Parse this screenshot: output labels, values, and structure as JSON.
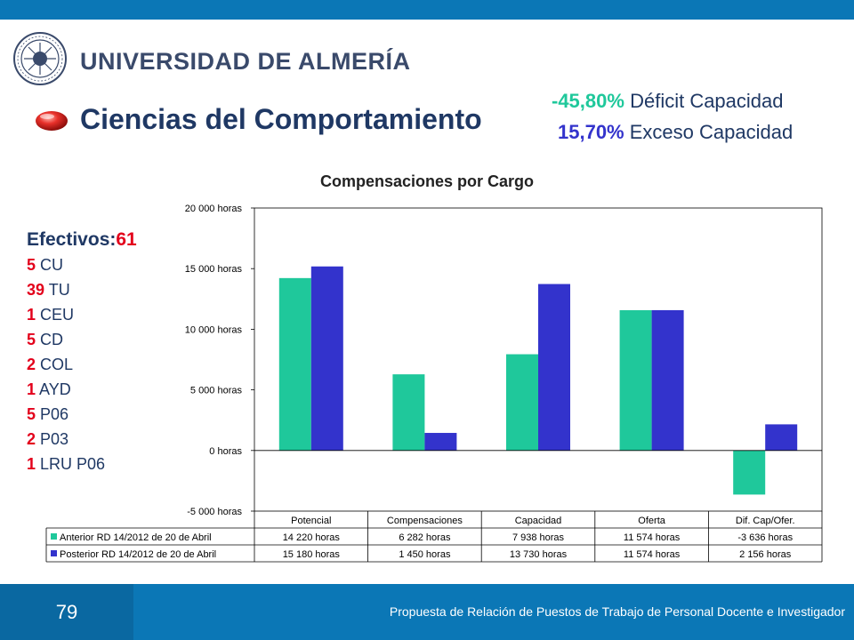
{
  "header": {
    "university": "UNIVERSIDAD DE ALMERÍA",
    "title": "Ciencias del Comportamiento",
    "stat_deficit_value": "-45,80%",
    "stat_deficit_label": "Déficit Capacidad",
    "stat_excess_value": "15,70%",
    "stat_excess_label": "Exceso Capacidad"
  },
  "efectivos": {
    "label": "Efectivos:",
    "total": "61",
    "items": [
      {
        "count": "5",
        "code": "CU"
      },
      {
        "count": "39",
        "code": "TU"
      },
      {
        "count": "1",
        "code": "CEU"
      },
      {
        "count": "5",
        "code": "CD"
      },
      {
        "count": "2",
        "code": "COL"
      },
      {
        "count": "1",
        "code": "AYD"
      },
      {
        "count": "5",
        "code": "P06"
      },
      {
        "count": "2",
        "code": "P03"
      },
      {
        "count": "1",
        "code": "LRU P06"
      }
    ]
  },
  "chart_data": {
    "type": "bar",
    "title": "Compensaciones por Cargo",
    "categories": [
      "Potencial",
      "Compensaciones",
      "Capacidad",
      "Oferta",
      "Dif. Cap/Ofer."
    ],
    "ylim": [
      -5000,
      20000
    ],
    "yticks": [
      20000,
      15000,
      10000,
      5000,
      0,
      -5000
    ],
    "ytick_labels": [
      "20 000 horas",
      "15 000 horas",
      "10 000 horas",
      "5 000 horas",
      "0 horas",
      "-5 000 horas"
    ],
    "grid": false,
    "legend": "table-below",
    "series": [
      {
        "name": "Anterior RD 14/2012 de 20 de Abril",
        "color": "#1fc89b",
        "values": [
          14220,
          6282,
          7938,
          11574,
          -3636
        ],
        "labels": [
          "14 220 horas",
          "6 282 horas",
          "7 938 horas",
          "11 574 horas",
          "-3 636 horas"
        ]
      },
      {
        "name": "Posterior RD 14/2012 de 20 de Abril",
        "color": "#3333cc",
        "values": [
          15180,
          1450,
          13730,
          11574,
          2156
        ],
        "labels": [
          "15 180 horas",
          "1 450 horas",
          "13 730 horas",
          "11 574 horas",
          "2 156 horas"
        ]
      }
    ]
  },
  "footer": {
    "page_number": "79",
    "text": "Propuesta de Relación de Puestos de Trabajo de Personal Docente e Investigador"
  }
}
